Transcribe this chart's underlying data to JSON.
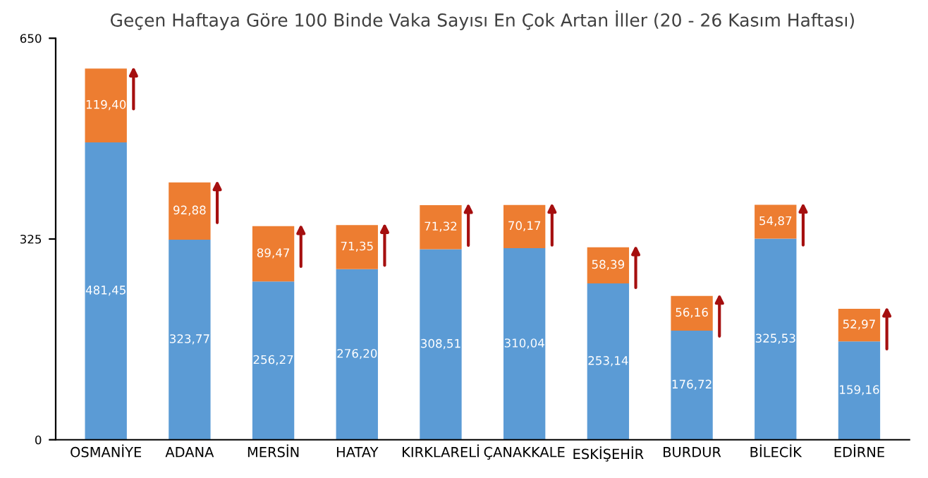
{
  "chart_data": {
    "type": "bar",
    "title": "Geçen Haftaya Göre 100 Binde Vaka Sayısı En Çok Artan İller (20 - 26 Kasım Haftası)",
    "categories": [
      "OSMANİYE",
      "ADANA",
      "MERSİN",
      "HATAY",
      "KIRKLARELİ",
      "ÇANAKKALE",
      "ESKİŞEHİR",
      "BURDUR",
      "BİLECİK",
      "EDİRNE"
    ],
    "stacked": true,
    "series": [
      {
        "color": "#5b9bd5",
        "values": [
          481.45,
          323.77,
          256.27,
          276.2,
          308.51,
          310.04,
          253.14,
          176.72,
          325.53,
          159.16
        ],
        "value_labels": [
          "481,45",
          "323,77",
          "256,27",
          "276,20",
          "308,51",
          "310,04",
          "253,14",
          "176,72",
          "325,53",
          "159,16"
        ]
      },
      {
        "color": "#ed7d31",
        "values": [
          119.4,
          92.88,
          89.47,
          71.35,
          71.32,
          70.17,
          58.39,
          56.16,
          54.87,
          52.97
        ],
        "value_labels": [
          "119,40",
          "92,88",
          "89,47",
          "71,35",
          "71,32",
          "70,17",
          "58,39",
          "56,16",
          "54,87",
          "52,97"
        ]
      }
    ],
    "ylim": [
      0,
      650
    ],
    "yticks": [
      0,
      325,
      650
    ],
    "grid": false,
    "legend": false
  }
}
